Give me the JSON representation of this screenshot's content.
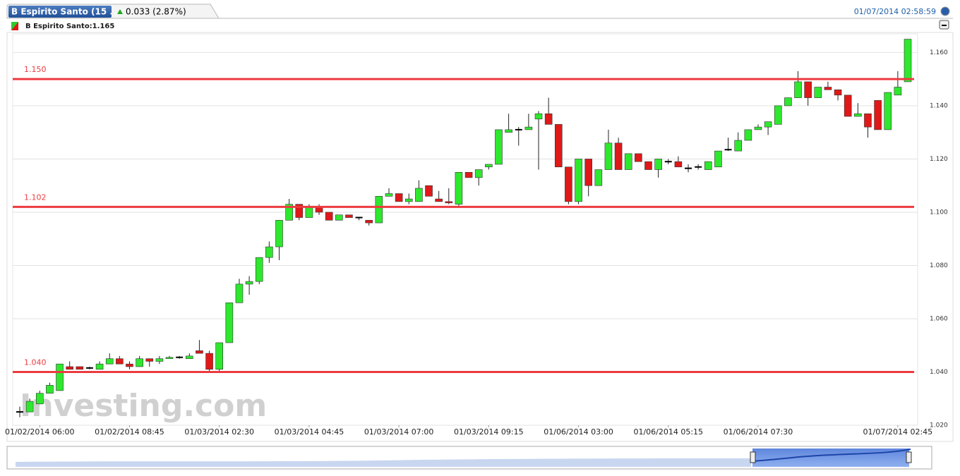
{
  "header": {
    "tab_title": "B Espirito Santo (15 ...",
    "change": "0.033 (2.87%)",
    "timestamp": "01/07/2014 02:58:59"
  },
  "chart_data": {
    "type": "candlestick",
    "legend_label": "B Espirito Santo:1.165",
    "watermark": "Investing.com",
    "up_color": "#2ee82e",
    "down_color": "#e01818",
    "grid": true,
    "categories": [
      null,
      null,
      "01/02/2014 06:00",
      null,
      null,
      null,
      null,
      null,
      null,
      null,
      null,
      "01/02/2014 08:45",
      null,
      null,
      null,
      null,
      null,
      null,
      null,
      null,
      "01/03/2014 02:30",
      null,
      null,
      null,
      null,
      null,
      null,
      null,
      null,
      "01/03/2014 04:45",
      null,
      null,
      null,
      null,
      null,
      null,
      null,
      null,
      "01/03/2014 07:00",
      null,
      null,
      null,
      null,
      null,
      null,
      null,
      null,
      "01/03/2014 09:15",
      null,
      null,
      null,
      null,
      null,
      null,
      null,
      null,
      "01/06/2014 03:00",
      null,
      null,
      null,
      null,
      null,
      null,
      null,
      null,
      "01/06/2014 05:15",
      null,
      null,
      null,
      null,
      null,
      null,
      null,
      null,
      "01/06/2014 07:30",
      null,
      null,
      null,
      null,
      null,
      null,
      null,
      null,
      null,
      null,
      null,
      null,
      null,
      "01/07/2014 02:45",
      null
    ],
    "open": [
      1.025,
      1.025,
      1.028,
      1.032,
      1.033,
      1.042,
      1.042,
      1.0415,
      1.041,
      1.043,
      1.045,
      1.043,
      1.042,
      1.045,
      1.044,
      1.045,
      1.0455,
      1.045,
      1.048,
      1.047,
      1.041,
      1.051,
      1.066,
      1.073,
      1.074,
      1.083,
      1.087,
      1.097,
      1.103,
      1.098,
      1.102,
      1.1,
      1.097,
      1.099,
      1.098,
      1.097,
      1.096,
      1.106,
      1.107,
      1.104,
      1.104,
      1.11,
      1.105,
      1.104,
      1.103,
      1.115,
      1.113,
      1.117,
      1.118,
      1.13,
      1.131,
      1.131,
      1.135,
      1.137,
      1.133,
      1.117,
      1.104,
      1.12,
      1.11,
      1.116,
      1.126,
      1.116,
      1.122,
      1.119,
      1.116,
      1.119,
      1.119,
      1.1165,
      1.117,
      1.116,
      1.117,
      1.1235,
      1.123,
      1.127,
      1.131,
      1.132,
      1.133,
      1.14,
      1.143,
      1.149,
      1.143,
      1.147,
      1.146,
      1.144,
      1.136,
      1.137,
      1.142,
      1.131,
      1.144,
      1.149
    ],
    "high": [
      1.027,
      1.03,
      1.033,
      1.036,
      1.043,
      1.044,
      1.042,
      1.042,
      1.044,
      1.047,
      1.046,
      1.044,
      1.046,
      1.045,
      1.046,
      1.046,
      1.046,
      1.047,
      1.052,
      1.048,
      1.051,
      1.066,
      1.075,
      1.076,
      1.083,
      1.089,
      1.097,
      1.105,
      1.103,
      1.103,
      1.103,
      1.1,
      1.099,
      1.099,
      1.098,
      1.097,
      1.106,
      1.109,
      1.107,
      1.107,
      1.112,
      1.11,
      1.108,
      1.109,
      1.115,
      1.115,
      1.116,
      1.118,
      1.131,
      1.137,
      1.132,
      1.137,
      1.138,
      1.143,
      1.133,
      1.117,
      1.12,
      1.12,
      1.116,
      1.131,
      1.128,
      1.122,
      1.122,
      1.119,
      1.12,
      1.12,
      1.121,
      1.118,
      1.118,
      1.119,
      1.123,
      1.128,
      1.13,
      1.131,
      1.133,
      1.134,
      1.14,
      1.143,
      1.153,
      1.149,
      1.147,
      1.149,
      1.146,
      1.144,
      1.141,
      1.137,
      1.142,
      1.145,
      1.153,
      1.165
    ],
    "low": [
      1.023,
      1.025,
      1.028,
      1.032,
      1.033,
      1.041,
      1.041,
      1.041,
      1.041,
      1.043,
      1.043,
      1.041,
      1.042,
      1.042,
      1.043,
      1.045,
      1.045,
      1.045,
      1.047,
      1.04,
      1.04,
      1.051,
      1.066,
      1.069,
      1.073,
      1.081,
      1.082,
      1.097,
      1.097,
      1.098,
      1.099,
      1.097,
      1.097,
      1.098,
      1.097,
      1.095,
      1.096,
      1.106,
      1.104,
      1.103,
      1.104,
      1.106,
      1.104,
      1.103,
      1.102,
      1.113,
      1.11,
      1.116,
      1.118,
      1.13,
      1.125,
      1.131,
      1.116,
      1.133,
      1.117,
      1.103,
      1.103,
      1.106,
      1.11,
      1.116,
      1.116,
      1.116,
      1.119,
      1.116,
      1.113,
      1.118,
      1.117,
      1.115,
      1.116,
      1.116,
      1.117,
      1.123,
      1.123,
      1.127,
      1.131,
      1.129,
      1.133,
      1.14,
      1.143,
      1.14,
      1.143,
      1.146,
      1.142,
      1.136,
      1.136,
      1.128,
      1.131,
      1.131,
      1.144,
      1.149
    ],
    "close": [
      1.025,
      1.029,
      1.032,
      1.035,
      1.043,
      1.041,
      1.041,
      1.0415,
      1.043,
      1.045,
      1.043,
      1.042,
      1.045,
      1.044,
      1.045,
      1.0455,
      1.0455,
      1.046,
      1.047,
      1.041,
      1.051,
      1.066,
      1.073,
      1.074,
      1.083,
      1.087,
      1.097,
      1.103,
      1.098,
      1.102,
      1.1,
      1.097,
      1.099,
      1.098,
      1.098,
      1.096,
      1.106,
      1.107,
      1.104,
      1.105,
      1.109,
      1.106,
      1.104,
      1.1035,
      1.115,
      1.113,
      1.116,
      1.118,
      1.131,
      1.131,
      1.131,
      1.132,
      1.137,
      1.133,
      1.117,
      1.104,
      1.12,
      1.11,
      1.116,
      1.126,
      1.116,
      1.122,
      1.119,
      1.116,
      1.12,
      1.119,
      1.117,
      1.1165,
      1.117,
      1.119,
      1.123,
      1.1235,
      1.127,
      1.131,
      1.132,
      1.134,
      1.14,
      1.143,
      1.149,
      1.143,
      1.147,
      1.146,
      1.144,
      1.136,
      1.137,
      1.132,
      1.131,
      1.145,
      1.147,
      1.165
    ],
    "ylim": [
      1.02,
      1.167
    ],
    "yticks": [
      {
        "value": 1.02,
        "label": "1.020"
      },
      {
        "value": 1.04,
        "label": "1.040"
      },
      {
        "value": 1.06,
        "label": "1.060"
      },
      {
        "value": 1.08,
        "label": "1.080"
      },
      {
        "value": 1.1,
        "label": "1.100"
      },
      {
        "value": 1.12,
        "label": "1.120"
      },
      {
        "value": 1.14,
        "label": "1.140"
      },
      {
        "value": 1.16,
        "label": "1.160"
      }
    ],
    "hlines_color": "#ec3b3f",
    "hlines": [
      {
        "value": 1.15,
        "label": "1.150"
      },
      {
        "value": 1.102,
        "label": "1.102"
      },
      {
        "value": 1.04,
        "label": "1.040"
      }
    ]
  }
}
